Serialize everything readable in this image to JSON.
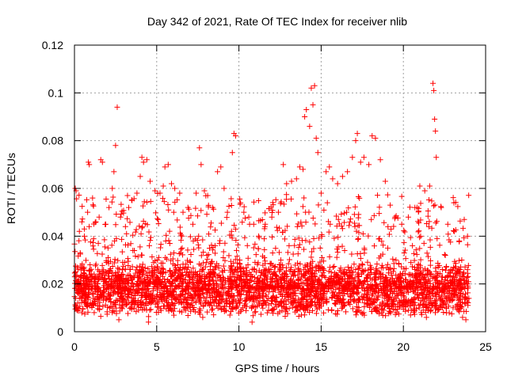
{
  "chart_data": {
    "type": "scatter",
    "title": "Day 342 of 2021, Rate Of TEC Index for receiver nlib",
    "xlabel": "GPS time / hours",
    "ylabel": "ROTI / TECUs",
    "xlim": [
      0,
      25
    ],
    "ylim": [
      0,
      0.12
    ],
    "x_ticks": [
      "0",
      "5",
      "10",
      "15",
      "20",
      "25"
    ],
    "y_ticks": [
      "0",
      "0.02",
      "0.04",
      "0.06",
      "0.08",
      "0.1",
      "0.12"
    ],
    "grid": true,
    "marker": "plus",
    "color": "#ff0000",
    "series": [
      {
        "points": [
          [
            0.05,
            0.06
          ],
          [
            0.1,
            0.059
          ],
          [
            0.15,
            0.021
          ],
          [
            0.3,
            0.042
          ],
          [
            0.45,
            0.046
          ],
          [
            0.6,
            0.04
          ],
          [
            0.8,
            0.05
          ],
          [
            0.85,
            0.071
          ],
          [
            0.9,
            0.07
          ],
          [
            1.1,
            0.056
          ],
          [
            1.3,
            0.046
          ],
          [
            1.5,
            0.048
          ],
          [
            1.6,
            0.072
          ],
          [
            1.7,
            0.071
          ],
          [
            1.9,
            0.045
          ],
          [
            2.1,
            0.052
          ],
          [
            2.3,
            0.06
          ],
          [
            2.4,
            0.067
          ],
          [
            2.5,
            0.078
          ],
          [
            2.6,
            0.094
          ],
          [
            2.8,
            0.048
          ],
          [
            3.1,
            0.044
          ],
          [
            3.3,
            0.052
          ],
          [
            3.5,
            0.055
          ],
          [
            3.8,
            0.058
          ],
          [
            4.0,
            0.065
          ],
          [
            4.1,
            0.073
          ],
          [
            4.2,
            0.071
          ],
          [
            4.4,
            0.072
          ],
          [
            4.6,
            0.063
          ],
          [
            4.9,
            0.059
          ],
          [
            5.2,
            0.058
          ],
          [
            5.4,
            0.061
          ],
          [
            5.5,
            0.069
          ],
          [
            5.7,
            0.07
          ],
          [
            5.9,
            0.062
          ],
          [
            6.1,
            0.06
          ],
          [
            6.4,
            0.058
          ],
          [
            6.6,
            0.05
          ],
          [
            6.9,
            0.052
          ],
          [
            7.2,
            0.045
          ],
          [
            7.4,
            0.058
          ],
          [
            7.6,
            0.077
          ],
          [
            7.7,
            0.07
          ],
          [
            7.9,
            0.059
          ],
          [
            8.1,
            0.057
          ],
          [
            8.4,
            0.052
          ],
          [
            8.7,
            0.067
          ],
          [
            8.9,
            0.069
          ],
          [
            9.1,
            0.06
          ],
          [
            9.3,
            0.05
          ],
          [
            9.6,
            0.075
          ],
          [
            9.7,
            0.083
          ],
          [
            9.8,
            0.082
          ],
          [
            10.1,
            0.054
          ],
          [
            10.3,
            0.05
          ],
          [
            10.6,
            0.048
          ],
          [
            10.9,
            0.045
          ],
          [
            11.2,
            0.04
          ],
          [
            11.6,
            0.045
          ],
          [
            12.0,
            0.048
          ],
          [
            12.4,
            0.05
          ],
          [
            12.7,
            0.07
          ],
          [
            12.9,
            0.062
          ],
          [
            13.2,
            0.063
          ],
          [
            13.5,
            0.064
          ],
          [
            13.7,
            0.069
          ],
          [
            13.9,
            0.068
          ],
          [
            14.0,
            0.09
          ],
          [
            14.1,
            0.093
          ],
          [
            14.3,
            0.086
          ],
          [
            14.4,
            0.102
          ],
          [
            14.5,
            0.095
          ],
          [
            14.6,
            0.103
          ],
          [
            14.7,
            0.081
          ],
          [
            14.8,
            0.075
          ],
          [
            15.0,
            0.058
          ],
          [
            15.3,
            0.067
          ],
          [
            15.5,
            0.069
          ],
          [
            15.7,
            0.064
          ],
          [
            16.0,
            0.062
          ],
          [
            16.3,
            0.065
          ],
          [
            16.6,
            0.067
          ],
          [
            16.9,
            0.073
          ],
          [
            17.1,
            0.08
          ],
          [
            17.2,
            0.083
          ],
          [
            17.4,
            0.071
          ],
          [
            17.6,
            0.073
          ],
          [
            17.9,
            0.07
          ],
          [
            18.1,
            0.082
          ],
          [
            18.3,
            0.081
          ],
          [
            18.6,
            0.072
          ],
          [
            18.9,
            0.063
          ],
          [
            19.2,
            0.053
          ],
          [
            19.5,
            0.048
          ],
          [
            19.9,
            0.045
          ],
          [
            20.3,
            0.048
          ],
          [
            20.7,
            0.052
          ],
          [
            21.0,
            0.061
          ],
          [
            21.3,
            0.059
          ],
          [
            21.6,
            0.061
          ],
          [
            21.8,
            0.104
          ],
          [
            21.85,
            0.101
          ],
          [
            21.9,
            0.089
          ],
          [
            21.95,
            0.084
          ],
          [
            22.0,
            0.073
          ],
          [
            22.3,
            0.052
          ],
          [
            22.7,
            0.045
          ],
          [
            23.1,
            0.042
          ],
          [
            23.4,
            0.038
          ],
          [
            23.7,
            0.047
          ],
          [
            23.9,
            0.04
          ],
          [
            0.2,
            0.012
          ],
          [
            0.7,
            0.018
          ],
          [
            1.2,
            0.008
          ],
          [
            1.8,
            0.015
          ],
          [
            2.7,
            0.005
          ],
          [
            3.6,
            0.014
          ],
          [
            4.5,
            0.004
          ],
          [
            5.8,
            0.01
          ],
          [
            6.8,
            0.013
          ],
          [
            7.8,
            0.006
          ],
          [
            8.8,
            0.012
          ],
          [
            9.9,
            0.011
          ],
          [
            10.8,
            0.004
          ],
          [
            11.8,
            0.009
          ],
          [
            12.8,
            0.01
          ],
          [
            13.8,
            0.007
          ],
          [
            14.9,
            0.012
          ],
          [
            16.1,
            0.013
          ],
          [
            17.3,
            0.009
          ],
          [
            18.4,
            0.01
          ],
          [
            19.6,
            0.008
          ],
          [
            20.6,
            0.012
          ],
          [
            21.4,
            0.006
          ],
          [
            22.6,
            0.01
          ],
          [
            23.6,
            0.006
          ],
          [
            23.8,
            0.005
          ],
          [
            0.35,
            0.033
          ],
          [
            0.95,
            0.028
          ],
          [
            1.45,
            0.037
          ],
          [
            2.05,
            0.031
          ],
          [
            2.55,
            0.039
          ],
          [
            3.05,
            0.029
          ],
          [
            3.55,
            0.034
          ],
          [
            4.05,
            0.041
          ],
          [
            4.55,
            0.036
          ],
          [
            5.05,
            0.03
          ],
          [
            5.55,
            0.038
          ],
          [
            6.05,
            0.033
          ],
          [
            6.55,
            0.035
          ],
          [
            7.05,
            0.029
          ],
          [
            7.55,
            0.04
          ],
          [
            8.05,
            0.032
          ],
          [
            8.55,
            0.036
          ],
          [
            9.05,
            0.031
          ],
          [
            9.55,
            0.042
          ],
          [
            10.05,
            0.03
          ],
          [
            10.55,
            0.028
          ],
          [
            11.05,
            0.025
          ],
          [
            11.55,
            0.031
          ],
          [
            12.05,
            0.033
          ],
          [
            12.55,
            0.03
          ],
          [
            13.05,
            0.036
          ],
          [
            13.55,
            0.044
          ],
          [
            14.05,
            0.05
          ],
          [
            14.55,
            0.039
          ],
          [
            15.05,
            0.031
          ],
          [
            15.55,
            0.045
          ],
          [
            16.05,
            0.047
          ],
          [
            16.55,
            0.05
          ],
          [
            17.05,
            0.044
          ],
          [
            17.55,
            0.041
          ],
          [
            18.05,
            0.047
          ],
          [
            18.55,
            0.039
          ],
          [
            19.05,
            0.035
          ],
          [
            19.55,
            0.03
          ],
          [
            20.05,
            0.033
          ],
          [
            20.55,
            0.036
          ],
          [
            21.05,
            0.04
          ],
          [
            21.55,
            0.044
          ],
          [
            22.05,
            0.039
          ],
          [
            22.55,
            0.032
          ],
          [
            23.05,
            0.027
          ],
          [
            23.55,
            0.03
          ],
          [
            23.9,
            0.026
          ]
        ]
      }
    ],
    "background_band": {
      "description_free": true,
      "y_low": [
        0.006,
        0.012
      ],
      "y_high": [
        0.022,
        0.03
      ]
    }
  }
}
